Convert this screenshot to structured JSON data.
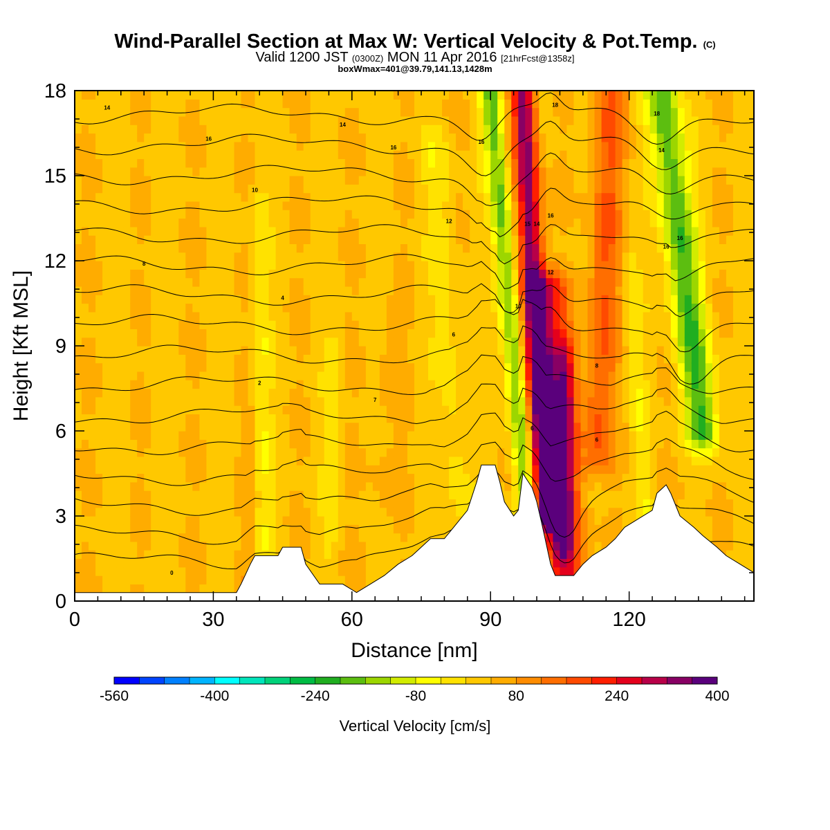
{
  "header": {
    "title": "Wind-Parallel Section at Max W: Vertical Velocity & Pot.Temp.",
    "title_mark": "(C)",
    "valid_prefix": "Valid 1200 JST",
    "valid_utc": "(0300Z)",
    "valid_date": "MON 11 Apr 2016",
    "valid_fcst": "[21hrFcst@1358z]",
    "box_info": "boxWmax=401@39.79,141.13,1428m"
  },
  "chart_data": {
    "type": "heatmap",
    "xlabel": "Distance [nm]",
    "ylabel": "Height [Kft MSL]",
    "xlim": [
      0,
      147
    ],
    "ylim": [
      0,
      18
    ],
    "xticks": [
      "0",
      "30",
      "60",
      "90",
      "120"
    ],
    "xtick_values": [
      0,
      30,
      60,
      90,
      120
    ],
    "yticks": [
      "0",
      "3",
      "6",
      "9",
      "12",
      "15",
      "18"
    ],
    "ytick_values": [
      0,
      3,
      6,
      9,
      12,
      15,
      18
    ],
    "colorbar": {
      "label": "Vertical Velocity [cm/s]",
      "min": -560,
      "max": 400,
      "step": 40,
      "tick_labels": [
        "-560",
        "-400",
        "-240",
        "-80",
        "80",
        "240",
        "400"
      ],
      "tick_values": [
        -560,
        -400,
        -240,
        -80,
        80,
        240,
        400
      ],
      "colors": [
        "#0000ff",
        "#0044ff",
        "#0080ff",
        "#00b4ff",
        "#00ffff",
        "#00e5bb",
        "#00d27a",
        "#00bc44",
        "#20ae20",
        "#5cbe10",
        "#9cd600",
        "#d2ec00",
        "#ffff00",
        "#ffe200",
        "#ffc800",
        "#ffac00",
        "#ff8c00",
        "#ff6e00",
        "#ff4a00",
        "#ff1e00",
        "#e4001c",
        "#b80048",
        "#880064",
        "#5a007c"
      ]
    },
    "terrain": [
      [
        0,
        0.3
      ],
      [
        35,
        0.3
      ],
      [
        36,
        0.6
      ],
      [
        38,
        1.3
      ],
      [
        39,
        1.6
      ],
      [
        44,
        1.6
      ],
      [
        45,
        1.9
      ],
      [
        49,
        1.9
      ],
      [
        50,
        1.3
      ],
      [
        53,
        0.6
      ],
      [
        58,
        0.6
      ],
      [
        61,
        0.3
      ],
      [
        64,
        0.6
      ],
      [
        67,
        0.9
      ],
      [
        70,
        1.3
      ],
      [
        73,
        1.6
      ],
      [
        75,
        1.9
      ],
      [
        77,
        2.2
      ],
      [
        80,
        2.2
      ],
      [
        82,
        2.6
      ],
      [
        85,
        3.2
      ],
      [
        87,
        4.2
      ],
      [
        88,
        4.8
      ],
      [
        91,
        4.8
      ],
      [
        92,
        4.2
      ],
      [
        93,
        3.5
      ],
      [
        95,
        3.0
      ],
      [
        96,
        3.2
      ],
      [
        97,
        4.5
      ],
      [
        99,
        4.0
      ],
      [
        100,
        3.5
      ],
      [
        101,
        2.8
      ],
      [
        103,
        1.3
      ],
      [
        104,
        0.9
      ],
      [
        108,
        0.9
      ],
      [
        110,
        1.3
      ],
      [
        112,
        1.6
      ],
      [
        115,
        1.9
      ],
      [
        117,
        2.2
      ],
      [
        119,
        2.6
      ],
      [
        122,
        2.9
      ],
      [
        125,
        3.2
      ],
      [
        126,
        3.8
      ],
      [
        128,
        4.1
      ],
      [
        129,
        3.8
      ],
      [
        131,
        3.0
      ],
      [
        134,
        2.6
      ],
      [
        136,
        2.3
      ],
      [
        139,
        1.9
      ],
      [
        141,
        1.6
      ],
      [
        144,
        1.3
      ],
      [
        147,
        1.0
      ]
    ],
    "w_features": [
      {
        "x0": 102,
        "x1": 97,
        "z0": 3,
        "z1": 18,
        "amp": 320,
        "w": 2.5
      },
      {
        "x0": 106,
        "x1": 102,
        "z0": 1,
        "z1": 11,
        "amp": 210,
        "w": 4.5
      },
      {
        "x0": 106,
        "x1": 106,
        "z0": 2,
        "z1": 8.5,
        "amp": 160,
        "w": 2.2
      },
      {
        "x0": 113,
        "x1": 116,
        "z0": 5,
        "z1": 18,
        "amp": 130,
        "w": 3.5
      },
      {
        "x0": 98,
        "x1": 90,
        "z0": 3,
        "z1": 18,
        "amp": -200,
        "w": 2.2
      },
      {
        "x0": 136,
        "x1": 127,
        "z0": 6,
        "z1": 18,
        "amp": -230,
        "w": 3.5
      },
      {
        "x0": 41,
        "x1": 40,
        "z0": 2,
        "z1": 14,
        "amp": -60,
        "w": 2
      },
      {
        "x0": 84,
        "x1": 78,
        "z0": 2,
        "z1": 16,
        "amp": -50,
        "w": 3
      },
      {
        "x0": 55,
        "x1": 56,
        "z0": 2,
        "z1": 9,
        "amp": -40,
        "w": 2
      },
      {
        "x0": 124,
        "x1": 120,
        "z0": 2,
        "z1": 12,
        "amp": -50,
        "w": 2
      },
      {
        "x0": 66,
        "x1": 68,
        "z0": 2,
        "z1": 10,
        "amp": 25,
        "w": 3
      },
      {
        "x0": 37,
        "x1": 38,
        "z0": 1,
        "z1": 6,
        "amp": 30,
        "w": 1.5
      }
    ],
    "theta_levels": [
      1,
      2,
      3,
      4,
      5,
      6,
      7,
      8,
      9,
      10,
      11,
      12,
      13,
      14,
      15,
      16
    ],
    "theta_labels": [
      {
        "text": "0",
        "x": 21,
        "z": 1.0
      },
      {
        "text": "2",
        "x": 40,
        "z": 7.7
      },
      {
        "text": "4",
        "x": 45,
        "z": 10.7
      },
      {
        "text": "6",
        "x": 82,
        "z": 9.4
      },
      {
        "text": "7",
        "x": 65,
        "z": 7.1
      },
      {
        "text": "8",
        "x": 15,
        "z": 11.9
      },
      {
        "text": "10",
        "x": 39,
        "z": 14.5
      },
      {
        "text": "12",
        "x": 81,
        "z": 13.4
      },
      {
        "text": "14",
        "x": 7,
        "z": 17.4
      },
      {
        "text": "14",
        "x": 58,
        "z": 16.8
      },
      {
        "text": "16",
        "x": 29,
        "z": 16.3
      },
      {
        "text": "16",
        "x": 69,
        "z": 16.0
      },
      {
        "text": "16",
        "x": 88,
        "z": 16.2
      },
      {
        "text": "18",
        "x": 104,
        "z": 17.5
      },
      {
        "text": "18",
        "x": 126,
        "z": 17.2
      },
      {
        "text": "12",
        "x": 103,
        "z": 11.6
      },
      {
        "text": "10",
        "x": 96,
        "z": 10.4
      },
      {
        "text": "15",
        "x": 98,
        "z": 13.3
      },
      {
        "text": "14",
        "x": 100,
        "z": 13.3
      },
      {
        "text": "16",
        "x": 103,
        "z": 13.6
      },
      {
        "text": "8",
        "x": 113,
        "z": 8.3
      },
      {
        "text": "6",
        "x": 113,
        "z": 5.7
      },
      {
        "text": "6",
        "x": 99,
        "z": 6.1
      },
      {
        "text": "14",
        "x": 127,
        "z": 15.9
      },
      {
        "text": "16",
        "x": 128,
        "z": 12.5
      },
      {
        "text": "16",
        "x": 131,
        "z": 12.8
      }
    ]
  }
}
